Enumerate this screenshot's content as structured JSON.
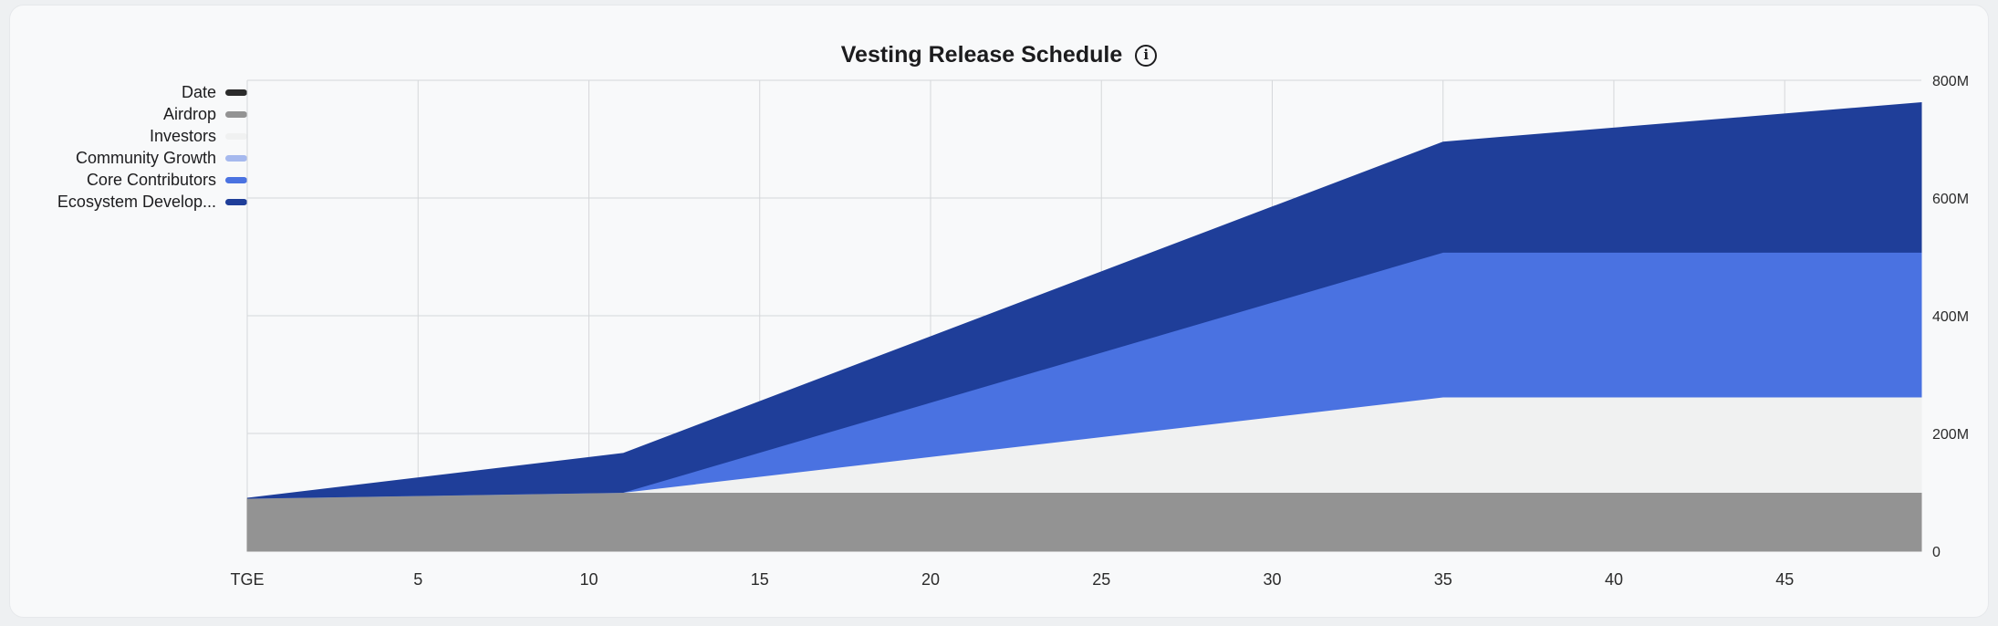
{
  "chart_data": {
    "type": "area",
    "title": "Vesting Release Schedule",
    "title_icon": "info-icon",
    "stacked": true,
    "xlabel": "",
    "ylabel": "",
    "x_range": [
      0,
      49
    ],
    "x_ticks": [
      0,
      5,
      10,
      15,
      20,
      25,
      30,
      35,
      40,
      45
    ],
    "x_tick_labels": [
      "TGE",
      "5",
      "10",
      "15",
      "20",
      "25",
      "30",
      "35",
      "40",
      "45"
    ],
    "ylim": [
      0,
      800
    ],
    "y_ticks": [
      0,
      200,
      400,
      600,
      800
    ],
    "y_tick_labels": [
      "0",
      "200M",
      "400M",
      "600M",
      "800M"
    ],
    "y_axis_side": "right",
    "grid": true,
    "legend_placement": "top-left",
    "x": [
      0,
      11,
      35,
      49
    ],
    "series": [
      {
        "name": "Date",
        "color": "#2b2b2b",
        "values": [
          0,
          0,
          0,
          0
        ]
      },
      {
        "name": "Airdrop",
        "color": "#939393",
        "values": [
          90,
          100,
          100,
          100
        ]
      },
      {
        "name": "Investors",
        "color": "#f0f1f1",
        "values": [
          0,
          0,
          162,
          162
        ]
      },
      {
        "name": "Community Growth",
        "color": "#a6b9ee",
        "values": [
          0,
          0,
          0,
          0
        ]
      },
      {
        "name": "Core Contributors",
        "color": "#4a72e1",
        "values": [
          0,
          0,
          246,
          246
        ]
      },
      {
        "name": "Ecosystem Develop...",
        "color": "#1f3e99",
        "values": [
          0,
          66,
          187,
          254
        ]
      }
    ]
  }
}
